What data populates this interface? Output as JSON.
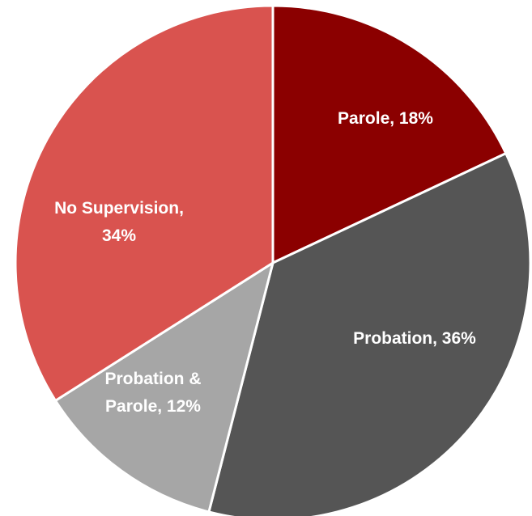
{
  "chart_data": {
    "type": "pie",
    "title": "",
    "start_angle_deg": 0,
    "direction": "clockwise",
    "slices": [
      {
        "name": "Parole",
        "value": 18,
        "color": "#8b0000",
        "label_lines": [
          "Parole, 18%"
        ]
      },
      {
        "name": "Probation",
        "value": 36,
        "color": "#555555",
        "label_lines": [
          "Probation, 36%"
        ]
      },
      {
        "name": "Probation & Parole",
        "value": 12,
        "color": "#a6a6a6",
        "label_lines": [
          "Probation &",
          "Parole, 12%"
        ]
      },
      {
        "name": "No Supervision",
        "value": 34,
        "color": "#d9534f",
        "label_lines": [
          "No Supervision,",
          "34%"
        ]
      }
    ]
  }
}
